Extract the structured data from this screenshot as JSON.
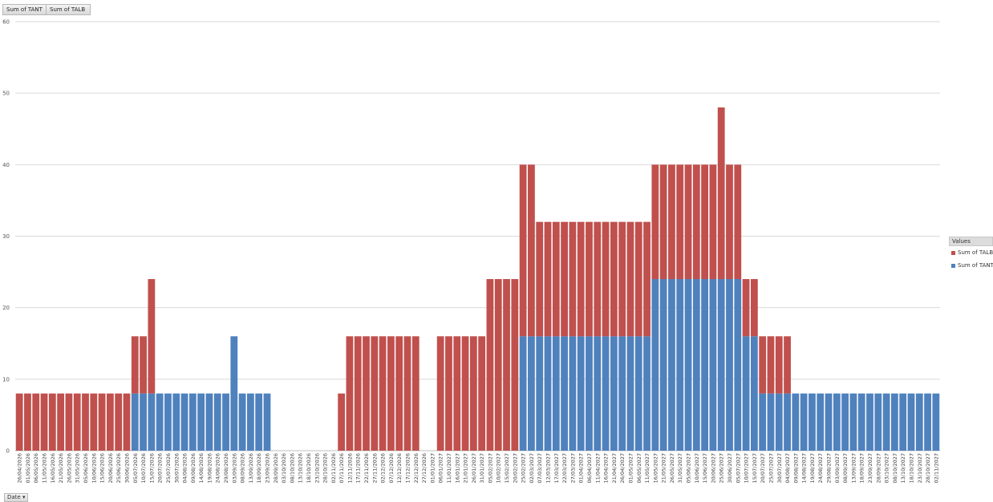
{
  "field_buttons": {
    "tant": "Sum of TANT",
    "talb": "Sum of TALB"
  },
  "axis_button": {
    "label": "Date",
    "icon": "dropdown-arrow-icon"
  },
  "legend": {
    "title": "Values",
    "items": [
      {
        "label": "Sum of TALB",
        "color": "#c0504d"
      },
      {
        "label": "Sum of TANT",
        "color": "#4f81bd"
      }
    ]
  },
  "chart_data": {
    "type": "bar",
    "stacked": true,
    "title": "",
    "xlabel": "Date",
    "ylabel": "",
    "ylim": [
      0,
      60
    ],
    "yticks": [
      0,
      10,
      20,
      30,
      40,
      50,
      60
    ],
    "grid": true,
    "legend_position": "right",
    "tick_labels": [
      "26/04/2026",
      "01/05/2026",
      "06/05/2026",
      "11/05/2026",
      "16/05/2026",
      "21/05/2026",
      "26/05/2026",
      "31/05/2026",
      "05/06/2026",
      "10/06/2026",
      "15/06/2026",
      "20/06/2026",
      "25/06/2026",
      "30/06/2026",
      "05/07/2026",
      "10/07/2026",
      "15/07/2026",
      "20/07/2026",
      "25/07/2026",
      "30/07/2026",
      "04/08/2026",
      "09/08/2026",
      "14/08/2026",
      "19/08/2026",
      "24/08/2026",
      "29/08/2026",
      "03/09/2026",
      "08/09/2026",
      "13/09/2026",
      "18/09/2026",
      "23/09/2026",
      "28/09/2026",
      "03/10/2026",
      "08/10/2026",
      "13/10/2026",
      "18/10/2026",
      "23/10/2026",
      "28/10/2026",
      "02/11/2026",
      "07/11/2026",
      "12/11/2026",
      "17/11/2026",
      "22/11/2026",
      "27/11/2026",
      "02/12/2026",
      "07/12/2026",
      "12/12/2026",
      "17/12/2026",
      "22/12/2026",
      "27/12/2026",
      "01/01/2027",
      "06/01/2027",
      "11/01/2027",
      "16/01/2027",
      "21/01/2027",
      "26/01/2027",
      "31/01/2027",
      "05/02/2027",
      "10/02/2027",
      "15/02/2027",
      "20/02/2027",
      "25/02/2027",
      "02/03/2027",
      "07/03/2027",
      "12/03/2027",
      "17/03/2027",
      "22/03/2027",
      "27/03/2027",
      "01/04/2027",
      "06/04/2027",
      "11/04/2027",
      "16/04/2027",
      "21/04/2027",
      "26/04/2027",
      "01/05/2027",
      "06/05/2027",
      "11/05/2027",
      "16/05/2027",
      "21/05/2027",
      "26/05/2027",
      "31/05/2027",
      "05/06/2027",
      "10/06/2027",
      "15/06/2027",
      "20/06/2027",
      "25/06/2027",
      "30/06/2027",
      "05/07/2027",
      "10/07/2027",
      "15/07/2027",
      "20/07/2027",
      "25/07/2027",
      "30/07/2027",
      "04/08/2027",
      "09/08/2027",
      "14/08/2027",
      "19/08/2027",
      "24/08/2027",
      "29/08/2027",
      "03/09/2027",
      "08/09/2027",
      "13/09/2027",
      "18/09/2027",
      "23/09/2027",
      "28/09/2027",
      "03/10/2027",
      "08/10/2027",
      "13/10/2027",
      "18/10/2027",
      "23/10/2027",
      "28/10/2027",
      "02/11/2027"
    ],
    "series": [
      {
        "name": "Sum of TANT",
        "values": [
          0,
          0,
          0,
          0,
          0,
          0,
          0,
          0,
          0,
          0,
          0,
          0,
          0,
          0,
          8,
          8,
          8,
          8,
          8,
          8,
          8,
          8,
          8,
          8,
          8,
          8,
          16,
          8,
          8,
          8,
          8,
          0,
          0,
          0,
          0,
          0,
          0,
          0,
          0,
          0,
          0,
          0,
          0,
          0,
          0,
          0,
          0,
          0,
          0,
          0,
          0,
          0,
          0,
          0,
          0,
          0,
          0,
          0,
          0,
          0,
          0,
          16,
          16,
          16,
          16,
          16,
          16,
          16,
          16,
          16,
          16,
          16,
          16,
          16,
          16,
          16,
          16,
          24,
          24,
          24,
          24,
          24,
          24,
          24,
          24,
          24,
          24,
          24,
          16,
          16,
          8,
          8,
          8,
          8,
          8,
          8,
          8,
          8,
          8,
          8,
          8,
          8,
          8,
          8,
          8,
          8,
          8,
          8,
          8,
          8,
          8,
          8
        ]
      },
      {
        "name": "Sum of TALB",
        "values": [
          8,
          8,
          8,
          8,
          8,
          8,
          8,
          8,
          8,
          8,
          8,
          8,
          8,
          8,
          8,
          8,
          16,
          0,
          0,
          0,
          0,
          0,
          0,
          0,
          0,
          0,
          0,
          0,
          0,
          0,
          0,
          0,
          0,
          0,
          0,
          0,
          0,
          0,
          0,
          8,
          16,
          16,
          16,
          16,
          16,
          16,
          16,
          16,
          16,
          0,
          0,
          16,
          16,
          16,
          16,
          16,
          16,
          24,
          24,
          24,
          24,
          24,
          24,
          16,
          16,
          16,
          16,
          16,
          16,
          16,
          16,
          16,
          16,
          16,
          16,
          16,
          16,
          16,
          16,
          16,
          16,
          16,
          16,
          16,
          16,
          24,
          16,
          16,
          8,
          8,
          8,
          8,
          8,
          8,
          0,
          0,
          0,
          0,
          0,
          0,
          0,
          0,
          0,
          0,
          0,
          0,
          0,
          0,
          0,
          0,
          0,
          0
        ]
      }
    ]
  }
}
